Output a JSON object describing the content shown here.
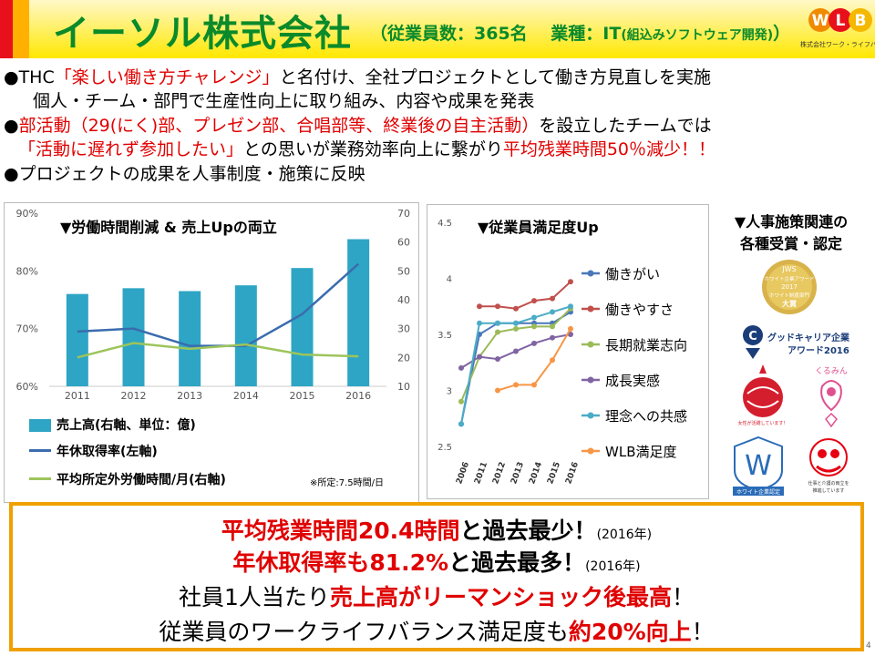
{
  "header": {
    "title": "イーソル株式会社",
    "subtitle_open": "（従業員数：365名　 業種：IT",
    "subtitle_small": "(組込みソフトウェア開発)",
    "subtitle_close": "）",
    "logo_letters": [
      "W",
      "L",
      "B"
    ],
    "logo_caption": "株式会社ワーク・ライフバランス"
  },
  "bullets": {
    "b1_pre": "●THC",
    "b1_red": "「楽しい働き方チャレンジ」",
    "b1_post": "と名付け、全社プロジェクトとして働き方見直しを実施",
    "b1_line2": "個人・チーム・部門で生産性向上に取り組み、内容や成果を発表",
    "b2_pre": "●",
    "b2_red": "部活動（29(にく)部、プレゼン部、合唱部等、終業後の自主活動）",
    "b2_post": "を設立したチームでは",
    "b3_red1": "「活動に遅れず参加したい」",
    "b3_mid": "との思いが業務効率向上に繋がり",
    "b3_red2": "平均残業時間50％減少！！",
    "b4": "●プロジェクトの成果を人事制度・施策に反映"
  },
  "chart1_text": {
    "heading": "▼労働時間削減 & 売上Upの両立",
    "legend_sales": "売上高(右軸、単位：億)",
    "legend_leave": "年休取得率(左軸)",
    "legend_overtime": "平均所定外労働時間/月(右軸)",
    "note": "※所定:7.5時間/日"
  },
  "chart2_text": {
    "heading": "▼従業員満足度Up"
  },
  "awards": {
    "heading_line1": "▼人事施策関連の",
    "heading_line2": "各種受賞・認定",
    "jws_line1": "JWS",
    "jws_line2": "ホワイト企業アワード",
    "jws_line3": "2017",
    "jws_line4": "ホワイト制度部門",
    "jws_line5": "大賞",
    "goodcareer_line1": "グッドキャリア企業",
    "goodcareer_line2": "アワード2016",
    "kurumin": "くるみん",
    "josei": "女性が活躍しています！",
    "white_cert": "ホワイト企業認定",
    "tokyo_cert_line1": "仕事と介護の両立を",
    "tokyo_cert_line2": "推進しています"
  },
  "bottom": {
    "l1_red": "平均残業時間20.4時間",
    "l1_post": "と過去最少！",
    "l1_small": "(2016年)",
    "l2_red": "年休取得率も81.2%",
    "l2_post": "と過去最多！",
    "l2_small": "(2016年)",
    "l3_pre": "社員1人当たり",
    "l3_red": "売上高がリーマンショック後最高",
    "l3_post": "！",
    "l4_pre": "従業員のワークライフバランス満足度も",
    "l4_red": "約20%向上",
    "l4_post": "！"
  },
  "page_number": "4",
  "colors": {
    "title_green": "#0a8a2a",
    "accent_red": "#e00000",
    "header_yellow": "#ffe800",
    "border_orange": "#f0a000"
  },
  "chart_data": [
    {
      "type": "bar+line",
      "title": "▼労働時間削減 & 売上Upの両立",
      "categories": [
        "2011",
        "2012",
        "2013",
        "2014",
        "2015",
        "2016"
      ],
      "y_left": {
        "ticks": [
          "60%",
          "70%",
          "80%",
          "90%"
        ],
        "range": [
          0.6,
          0.9
        ]
      },
      "y_right": {
        "ticks": [
          "10",
          "20",
          "30",
          "40",
          "50",
          "60",
          "70"
        ],
        "range": [
          10,
          70
        ]
      },
      "series": [
        {
          "name": "売上高(右軸、単位：億)",
          "kind": "bar",
          "axis": "right",
          "color": "#2ea5c4",
          "values": [
            42,
            44,
            43,
            45,
            51,
            61
          ]
        },
        {
          "name": "年休取得率(左軸)",
          "kind": "line",
          "axis": "left",
          "color": "#3a6cae",
          "values": [
            0.695,
            0.7,
            0.67,
            0.67,
            0.725,
            0.812
          ]
        },
        {
          "name": "平均所定外労働時間/月(右軸)",
          "kind": "line",
          "axis": "right",
          "color": "#9dc45b",
          "values": [
            20,
            25,
            23,
            24.5,
            21,
            20.4
          ]
        }
      ]
    },
    {
      "type": "line",
      "title": "▼従業員満足度Up",
      "categories": [
        "2006",
        "2011",
        "2012",
        "2013",
        "2014",
        "2015",
        "2016"
      ],
      "y": {
        "ticks": [
          "2.5",
          "3",
          "3.5",
          "4",
          "4.5"
        ],
        "range": [
          2.5,
          4.5
        ]
      },
      "series": [
        {
          "name": "働きがい",
          "color": "#4a78b8",
          "values": [
            2.7,
            3.5,
            3.6,
            3.6,
            3.6,
            3.6,
            3.7
          ]
        },
        {
          "name": "働きやすさ",
          "color": "#c0504d",
          "values": [
            null,
            3.75,
            3.75,
            3.73,
            3.8,
            3.82,
            3.97
          ]
        },
        {
          "name": "長期就業志向",
          "color": "#9bbb59",
          "values": [
            2.9,
            3.3,
            3.52,
            3.55,
            3.57,
            3.57,
            3.73
          ]
        },
        {
          "name": "成長実感",
          "color": "#8064a2",
          "values": [
            3.2,
            3.3,
            3.28,
            3.35,
            3.42,
            3.47,
            3.5
          ]
        },
        {
          "name": "理念への共感",
          "color": "#4bacc6",
          "values": [
            2.7,
            3.6,
            3.6,
            3.6,
            3.65,
            3.7,
            3.75
          ]
        },
        {
          "name": "WLB満足度",
          "color": "#f79646",
          "values": [
            null,
            null,
            3.0,
            3.05,
            3.05,
            3.27,
            3.55
          ]
        }
      ]
    }
  ]
}
